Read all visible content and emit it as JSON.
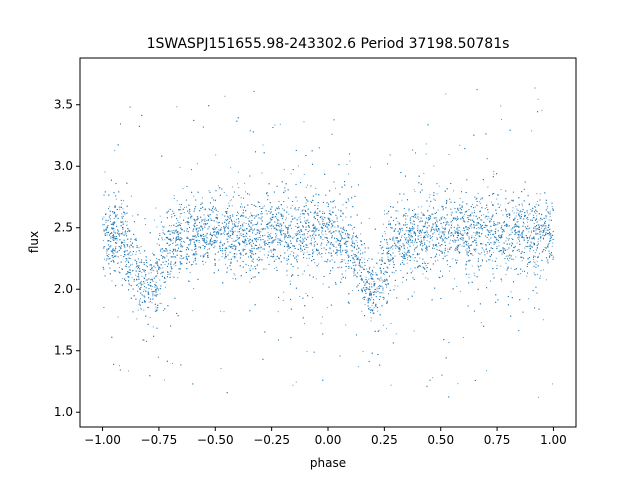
{
  "chart_data": {
    "type": "scatter",
    "title": "1SWASPJ151655.98-243302.6 Period 37198.50781s",
    "xlabel": "phase",
    "ylabel": "flux",
    "xlim": [
      -1.1,
      1.1
    ],
    "ylim": [
      0.88,
      3.88
    ],
    "x_ticks": [
      -1.0,
      -0.75,
      -0.5,
      -0.25,
      0.0,
      0.25,
      0.5,
      0.75,
      1.0
    ],
    "x_tick_labels": [
      "−1.00",
      "−0.75",
      "−0.50",
      "−0.25",
      "0.00",
      "0.25",
      "0.50",
      "0.75",
      "1.00"
    ],
    "y_ticks": [
      1.0,
      1.5,
      2.0,
      2.5,
      3.0,
      3.5
    ],
    "y_tick_labels": [
      "1.0",
      "1.5",
      "2.0",
      "2.5",
      "3.0",
      "3.5"
    ],
    "grid": false,
    "legend": "none",
    "marker_color": "#1f77b4",
    "baseline_flux": 2.45,
    "eclipses": [
      {
        "phase": -0.8,
        "min_flux": 1.95
      },
      {
        "phase": 0.2,
        "min_flux": 1.95
      }
    ],
    "series": [
      {
        "x": [
          -1.0,
          -0.95,
          -0.9,
          -0.85,
          -0.82,
          -0.8,
          -0.78,
          -0.75,
          -0.7,
          -0.6,
          -0.5,
          -0.4,
          -0.3,
          -0.2,
          -0.1,
          0.0,
          0.05,
          0.1,
          0.15,
          0.18,
          0.2,
          0.22,
          0.25,
          0.3,
          0.4,
          0.5,
          0.6,
          0.7,
          0.8,
          0.9,
          1.0
        ],
        "values": [
          2.45,
          2.45,
          2.38,
          2.15,
          2.02,
          1.95,
          2.02,
          2.18,
          2.4,
          2.45,
          2.45,
          2.45,
          2.45,
          2.45,
          2.45,
          2.45,
          2.42,
          2.35,
          2.12,
          2.0,
          1.95,
          2.02,
          2.2,
          2.4,
          2.45,
          2.45,
          2.45,
          2.45,
          2.45,
          2.45,
          2.45
        ]
      }
    ]
  }
}
